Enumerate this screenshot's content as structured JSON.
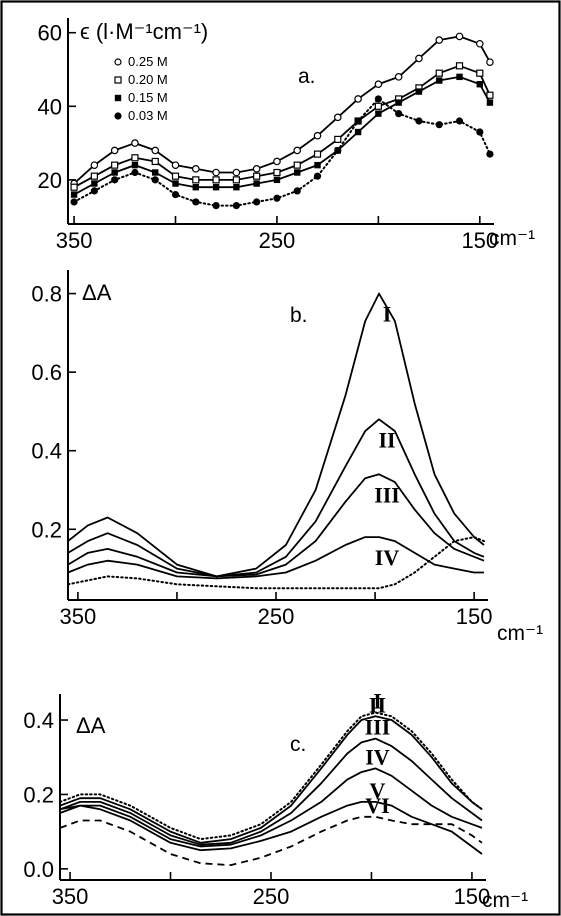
{
  "chart_data": [
    {
      "panel": "a.",
      "type": "line",
      "ylabel": "ϵ (l·M⁻¹cm⁻¹)",
      "xunit": "cm⁻¹",
      "xlim": [
        353,
        143
      ],
      "ylim": [
        8,
        64
      ],
      "xticks": [
        350,
        300,
        250,
        200,
        150
      ],
      "xticklabels": [
        "350",
        "",
        "250",
        "",
        "150"
      ],
      "yticks": [
        20,
        40,
        60
      ],
      "legend_position": "top-left",
      "series": [
        {
          "name": "0.25 M",
          "marker": "open-circle",
          "style": "solid",
          "color": "#000000",
          "x": [
            350,
            340,
            330,
            320,
            310,
            300,
            290,
            280,
            270,
            260,
            250,
            240,
            230,
            220,
            210,
            200,
            190,
            180,
            170,
            160,
            150,
            145
          ],
          "y": [
            19,
            24,
            28,
            30,
            28,
            24,
            23,
            22,
            22,
            23,
            25,
            28,
            32,
            37,
            42,
            46,
            48,
            53,
            58,
            59,
            57,
            52
          ]
        },
        {
          "name": "0.20 M",
          "marker": "open-square",
          "style": "solid",
          "color": "#000000",
          "x": [
            350,
            340,
            330,
            320,
            310,
            300,
            290,
            280,
            270,
            260,
            250,
            240,
            230,
            220,
            210,
            200,
            190,
            180,
            170,
            160,
            150,
            145
          ],
          "y": [
            18,
            21,
            24,
            26,
            25,
            21,
            20,
            20,
            20,
            21,
            22,
            24,
            27,
            31,
            36,
            40,
            42,
            45,
            49,
            51,
            49,
            43
          ]
        },
        {
          "name": "0.15 M",
          "marker": "filled-square",
          "style": "solid",
          "color": "#000000",
          "x": [
            350,
            340,
            330,
            320,
            310,
            300,
            290,
            280,
            270,
            260,
            250,
            240,
            230,
            220,
            210,
            200,
            190,
            180,
            170,
            160,
            150,
            145
          ],
          "y": [
            16,
            19,
            22,
            24,
            22,
            19,
            18,
            18,
            18,
            19,
            20,
            22,
            24,
            28,
            33,
            38,
            41,
            44,
            47,
            48,
            46,
            41
          ]
        },
        {
          "name": "0.03 M",
          "marker": "filled-circle",
          "style": "dotted",
          "color": "#000000",
          "x": [
            350,
            340,
            330,
            320,
            310,
            300,
            290,
            280,
            270,
            260,
            250,
            240,
            230,
            220,
            210,
            200,
            190,
            180,
            170,
            160,
            150,
            145
          ],
          "y": [
            14,
            17,
            20,
            22,
            20,
            16,
            14,
            13,
            13,
            14,
            15,
            17,
            21,
            28,
            36,
            42,
            38,
            36,
            35,
            36,
            33,
            27
          ]
        }
      ]
    },
    {
      "panel": "b.",
      "type": "line",
      "ylabel": "ΔA",
      "xunit": "cm⁻¹",
      "xlim": [
        355,
        143
      ],
      "ylim": [
        0.02,
        0.86
      ],
      "xticks": [
        350,
        300,
        250,
        200,
        150
      ],
      "xticklabels": [
        "350",
        "",
        "250",
        "",
        "150"
      ],
      "yticks": [
        0.2,
        0.4,
        0.6,
        0.8
      ],
      "series": [
        {
          "name": "I",
          "style": "solid",
          "color": "#000000",
          "x": [
            355,
            345,
            335,
            320,
            300,
            280,
            260,
            245,
            230,
            215,
            205,
            198,
            190,
            180,
            170,
            160,
            150,
            145
          ],
          "y": [
            0.17,
            0.21,
            0.23,
            0.19,
            0.11,
            0.08,
            0.1,
            0.16,
            0.3,
            0.54,
            0.73,
            0.8,
            0.73,
            0.52,
            0.34,
            0.24,
            0.18,
            0.16
          ]
        },
        {
          "name": "II",
          "style": "solid",
          "color": "#000000",
          "x": [
            355,
            345,
            335,
            320,
            300,
            280,
            260,
            245,
            230,
            215,
            205,
            198,
            190,
            180,
            170,
            160,
            150,
            145
          ],
          "y": [
            0.14,
            0.17,
            0.19,
            0.16,
            0.1,
            0.08,
            0.09,
            0.13,
            0.22,
            0.36,
            0.45,
            0.48,
            0.45,
            0.34,
            0.24,
            0.17,
            0.14,
            0.13
          ]
        },
        {
          "name": "III",
          "style": "solid",
          "color": "#000000",
          "x": [
            355,
            345,
            335,
            320,
            300,
            280,
            260,
            245,
            230,
            215,
            205,
            198,
            190,
            180,
            170,
            160,
            150,
            145
          ],
          "y": [
            0.11,
            0.14,
            0.15,
            0.13,
            0.09,
            0.08,
            0.085,
            0.11,
            0.17,
            0.27,
            0.33,
            0.34,
            0.32,
            0.25,
            0.19,
            0.15,
            0.13,
            0.12
          ]
        },
        {
          "name": "IV",
          "style": "solid",
          "color": "#000000",
          "x": [
            355,
            345,
            335,
            320,
            300,
            280,
            260,
            245,
            230,
            215,
            205,
            198,
            190,
            180,
            170,
            160,
            150,
            145
          ],
          "y": [
            0.09,
            0.11,
            0.12,
            0.11,
            0.08,
            0.075,
            0.08,
            0.09,
            0.12,
            0.16,
            0.18,
            0.18,
            0.17,
            0.14,
            0.11,
            0.1,
            0.09,
            0.09
          ]
        },
        {
          "name": "",
          "style": "dotted",
          "color": "#000000",
          "x": [
            355,
            345,
            335,
            320,
            300,
            280,
            260,
            245,
            230,
            215,
            205,
            198,
            190,
            180,
            170,
            160,
            150,
            145
          ],
          "y": [
            0.06,
            0.07,
            0.08,
            0.075,
            0.06,
            0.055,
            0.05,
            0.05,
            0.05,
            0.05,
            0.05,
            0.05,
            0.06,
            0.09,
            0.13,
            0.17,
            0.18,
            0.17
          ]
        }
      ]
    },
    {
      "panel": "c.",
      "type": "line",
      "ylabel": "ΔA",
      "xunit": "cm⁻¹",
      "xlim": [
        355,
        143
      ],
      "ylim": [
        -0.03,
        0.47
      ],
      "xticks": [
        350,
        300,
        250,
        200,
        150
      ],
      "xticklabels": [
        "350",
        "",
        "250",
        "",
        "150"
      ],
      "yticks": [
        0.0,
        0.2,
        0.4
      ],
      "yticklabels": [
        "0.0",
        "0.2",
        "0.4"
      ],
      "series": [
        {
          "name": "I",
          "style": "dotted",
          "color": "#000000",
          "x": [
            355,
            345,
            335,
            320,
            300,
            285,
            270,
            255,
            240,
            225,
            212,
            205,
            198,
            190,
            180,
            170,
            160,
            150,
            145
          ],
          "y": [
            0.18,
            0.2,
            0.2,
            0.17,
            0.11,
            0.08,
            0.09,
            0.12,
            0.18,
            0.28,
            0.37,
            0.41,
            0.42,
            0.41,
            0.37,
            0.31,
            0.24,
            0.18,
            0.16
          ]
        },
        {
          "name": "II",
          "style": "solid",
          "color": "#000000",
          "x": [
            355,
            345,
            335,
            320,
            300,
            285,
            270,
            255,
            240,
            225,
            212,
            205,
            198,
            190,
            180,
            170,
            160,
            150,
            145
          ],
          "y": [
            0.17,
            0.19,
            0.19,
            0.16,
            0.1,
            0.07,
            0.08,
            0.11,
            0.17,
            0.27,
            0.36,
            0.4,
            0.41,
            0.4,
            0.36,
            0.3,
            0.23,
            0.18,
            0.16
          ]
        },
        {
          "name": "III",
          "style": "solid",
          "color": "#000000",
          "x": [
            355,
            345,
            335,
            320,
            300,
            285,
            270,
            255,
            240,
            225,
            212,
            205,
            198,
            190,
            180,
            170,
            160,
            150,
            145
          ],
          "y": [
            0.16,
            0.18,
            0.18,
            0.15,
            0.09,
            0.065,
            0.07,
            0.1,
            0.15,
            0.23,
            0.31,
            0.34,
            0.35,
            0.33,
            0.29,
            0.24,
            0.19,
            0.15,
            0.13
          ]
        },
        {
          "name": "IV",
          "style": "solid",
          "color": "#000000",
          "x": [
            355,
            345,
            335,
            320,
            300,
            285,
            270,
            255,
            240,
            225,
            212,
            205,
            198,
            190,
            180,
            170,
            160,
            150,
            145
          ],
          "y": [
            0.16,
            0.17,
            0.17,
            0.14,
            0.08,
            0.06,
            0.065,
            0.09,
            0.13,
            0.18,
            0.24,
            0.26,
            0.27,
            0.25,
            0.21,
            0.17,
            0.14,
            0.12,
            0.11
          ]
        },
        {
          "name": "V",
          "style": "solid",
          "color": "#000000",
          "x": [
            355,
            345,
            335,
            320,
            300,
            285,
            270,
            255,
            240,
            225,
            212,
            205,
            198,
            190,
            180,
            170,
            160,
            150,
            145
          ],
          "y": [
            0.15,
            0.17,
            0.16,
            0.13,
            0.07,
            0.05,
            0.055,
            0.075,
            0.1,
            0.14,
            0.17,
            0.18,
            0.18,
            0.17,
            0.14,
            0.12,
            0.1,
            0.06,
            0.04
          ]
        },
        {
          "name": "VI",
          "style": "dashed",
          "color": "#000000",
          "x": [
            355,
            345,
            335,
            320,
            300,
            285,
            270,
            255,
            240,
            225,
            212,
            205,
            198,
            190,
            180,
            170,
            160,
            150,
            145
          ],
          "y": [
            0.11,
            0.13,
            0.13,
            0.1,
            0.04,
            0.015,
            0.01,
            0.03,
            0.06,
            0.1,
            0.13,
            0.14,
            0.14,
            0.13,
            0.12,
            0.12,
            0.12,
            0.09,
            0.07
          ]
        }
      ]
    }
  ]
}
